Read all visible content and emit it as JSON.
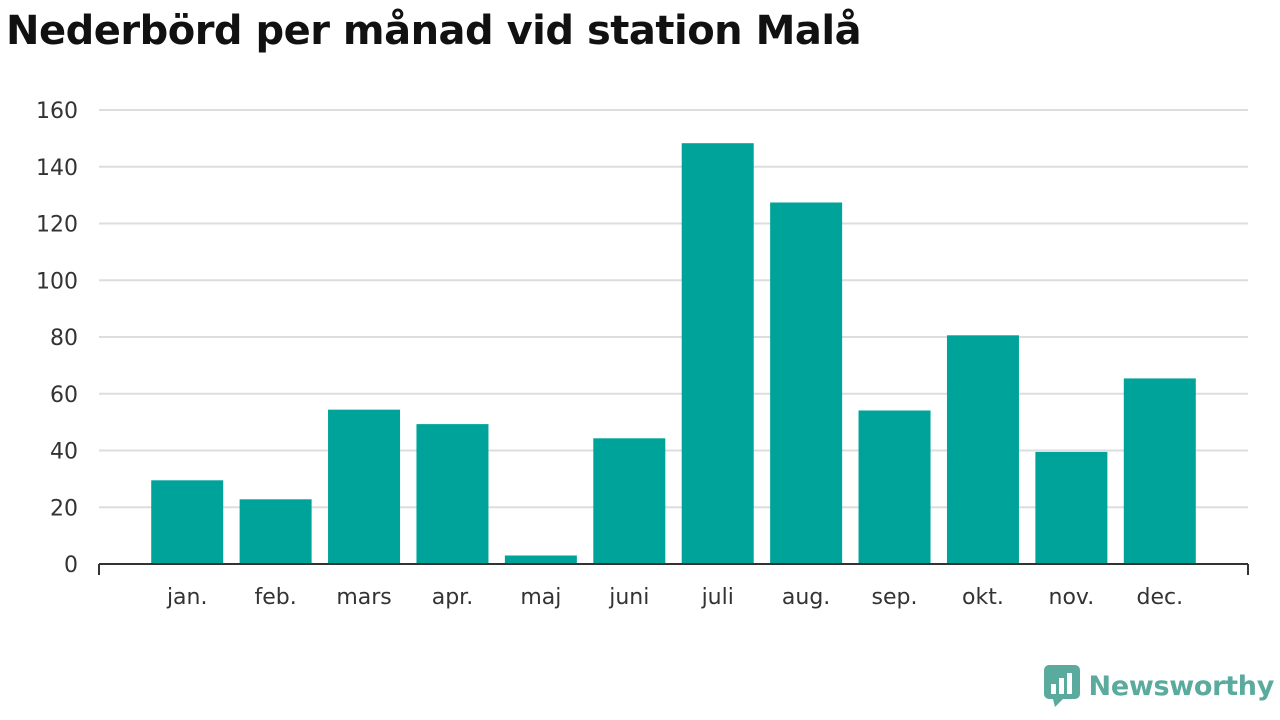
{
  "chart_data": {
    "type": "bar",
    "title": "Nederbörd per månad vid station Malå",
    "categories": [
      "jan.",
      "feb.",
      "mars",
      "apr.",
      "maj",
      "juni",
      "juli",
      "aug.",
      "sep.",
      "okt.",
      "nov.",
      "dec."
    ],
    "values": [
      29.5,
      22.8,
      54.4,
      49.3,
      3.0,
      44.3,
      148.3,
      127.4,
      54.1,
      80.6,
      39.5,
      65.4
    ],
    "yticks": [
      0,
      20,
      40,
      60,
      80,
      100,
      120,
      140,
      160
    ],
    "ylim": [
      0,
      160
    ],
    "grid": true,
    "bar_color": "#00a39a"
  },
  "branding": {
    "name": "Newsworthy",
    "logo_icon": "bar-chart-icon",
    "color": "#5aaa9e"
  }
}
